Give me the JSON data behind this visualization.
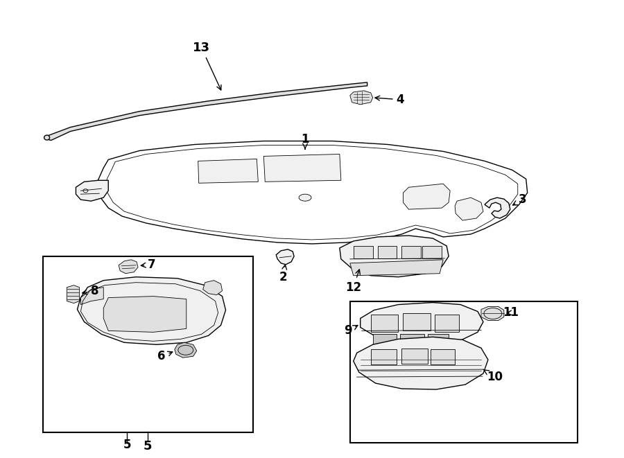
{
  "bg_color": "#ffffff",
  "line_color": "#000000",
  "figsize": [
    9.0,
    6.61
  ],
  "dpi": 100,
  "lw": 1.0,
  "lw_thin": 0.6,
  "lw_thick": 1.5,
  "fc_white": "#ffffff",
  "fc_light": "#f0f0f0",
  "fc_mid": "#e0e0e0",
  "fc_dark": "#c8c8c8"
}
